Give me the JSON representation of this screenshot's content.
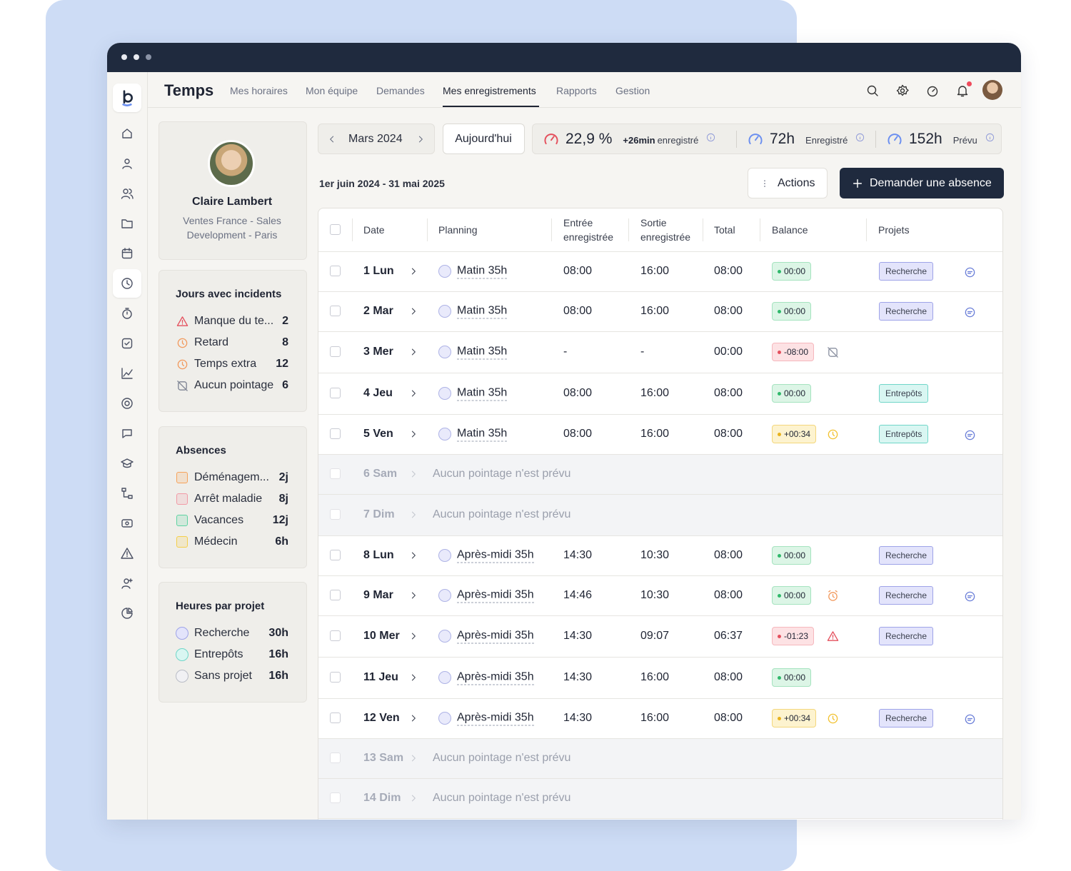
{
  "app": {
    "title": "Temps"
  },
  "nav": [
    "Mes horaires",
    "Mon équipe",
    "Demandes",
    "Mes enregistrements",
    "Rapports",
    "Gestion"
  ],
  "profile": {
    "name": "Claire Lambert",
    "department": "Ventes France - Sales Development - Paris"
  },
  "incidents": {
    "title": "Jours avec incidents",
    "items": [
      {
        "label": "Manque du te...",
        "value": "2"
      },
      {
        "label": "Retard",
        "value": "8"
      },
      {
        "label": "Temps extra",
        "value": "12"
      },
      {
        "label": "Aucun pointage",
        "value": "6"
      }
    ]
  },
  "absences": {
    "title": "Absences",
    "items": [
      {
        "label": "Déménagem...",
        "value": "2j",
        "color": "#f6a35b"
      },
      {
        "label": "Arrêt maladie",
        "value": "8j",
        "color": "#f29aa6"
      },
      {
        "label": "Vacances",
        "value": "12j",
        "color": "#5fd3a2"
      },
      {
        "label": "Médecin",
        "value": "6h",
        "color": "#f4cf4a"
      }
    ]
  },
  "projects": {
    "title": "Heures par projet",
    "items": [
      {
        "label": "Recherche",
        "value": "30h",
        "color": "#9ea3e8",
        "fill": "#e3e4fb"
      },
      {
        "label": "Entrepôts",
        "value": "16h",
        "color": "#6fd6c8",
        "fill": "#d9f6f2"
      },
      {
        "label": "Sans projet",
        "value": "16h",
        "color": "#b9bcc6",
        "fill": "#f1f1f4"
      }
    ]
  },
  "period": {
    "month": "Mars 2024",
    "today": "Aujourd'hui",
    "range": "1er juin 2024 - 31 mai 2025"
  },
  "stats": [
    {
      "value": "22,9 %",
      "delta": "+26min",
      "label": "enregistré"
    },
    {
      "value": "72h",
      "label": "Enregistré"
    },
    {
      "value": "152h",
      "label": "Prévu"
    }
  ],
  "actions": {
    "more": "Actions",
    "request": "Demander une absence"
  },
  "table": {
    "headers": [
      "Date",
      "Planning",
      "Entrée enregistrée",
      "Sortie enregistrée",
      "Total",
      "Balance",
      "Projets"
    ],
    "rows": [
      {
        "day": "1 Lun",
        "planning": "Matin 35h",
        "in": "08:00",
        "out": "16:00",
        "total": "08:00",
        "balance": "00:00",
        "project": "Recherche"
      },
      {
        "day": "2 Mar",
        "planning": "Matin 35h",
        "in": "08:00",
        "out": "16:00",
        "total": "08:00",
        "balance": "00:00",
        "project": "Recherche"
      },
      {
        "day": "3 Mer",
        "planning": "Matin 35h",
        "in": "-",
        "out": "-",
        "total": "00:00",
        "balance": "-08:00"
      },
      {
        "day": "4 Jeu",
        "planning": "Matin 35h",
        "in": "08:00",
        "out": "16:00",
        "total": "08:00",
        "balance": "00:00",
        "project": "Entrepôts"
      },
      {
        "day": "5 Ven",
        "planning": "Matin 35h",
        "in": "08:00",
        "out": "16:00",
        "total": "08:00",
        "balance": "+00:34",
        "project": "Entrepôts"
      },
      {
        "day": "6 Sam",
        "note": "Aucun pointage n'est prévu"
      },
      {
        "day": "7 Dim",
        "note": "Aucun pointage n'est prévu"
      },
      {
        "day": "8 Lun",
        "planning": "Après-midi 35h",
        "in": "14:30",
        "out": "10:30",
        "total": "08:00",
        "balance": "00:00",
        "project": "Recherche"
      },
      {
        "day": "9 Mar",
        "planning": "Après-midi 35h",
        "in": "14:46",
        "out": "10:30",
        "total": "08:00",
        "balance": "00:00",
        "project": "Recherche"
      },
      {
        "day": "10 Mer",
        "planning": "Après-midi 35h",
        "in": "14:30",
        "out": "09:07",
        "total": "06:37",
        "balance": "-01:23",
        "project": "Recherche"
      },
      {
        "day": "11 Jeu",
        "planning": "Après-midi 35h",
        "in": "14:30",
        "out": "16:00",
        "total": "08:00",
        "balance": "00:00"
      },
      {
        "day": "12 Ven",
        "planning": "Après-midi 35h",
        "in": "14:30",
        "out": "16:00",
        "total": "08:00",
        "balance": "+00:34",
        "project": "Recherche"
      },
      {
        "day": "13 Sam",
        "note": "Aucun pointage n'est prévu"
      },
      {
        "day": "14 Dim",
        "note": "Aucun pointage n'est prévu"
      }
    ]
  }
}
